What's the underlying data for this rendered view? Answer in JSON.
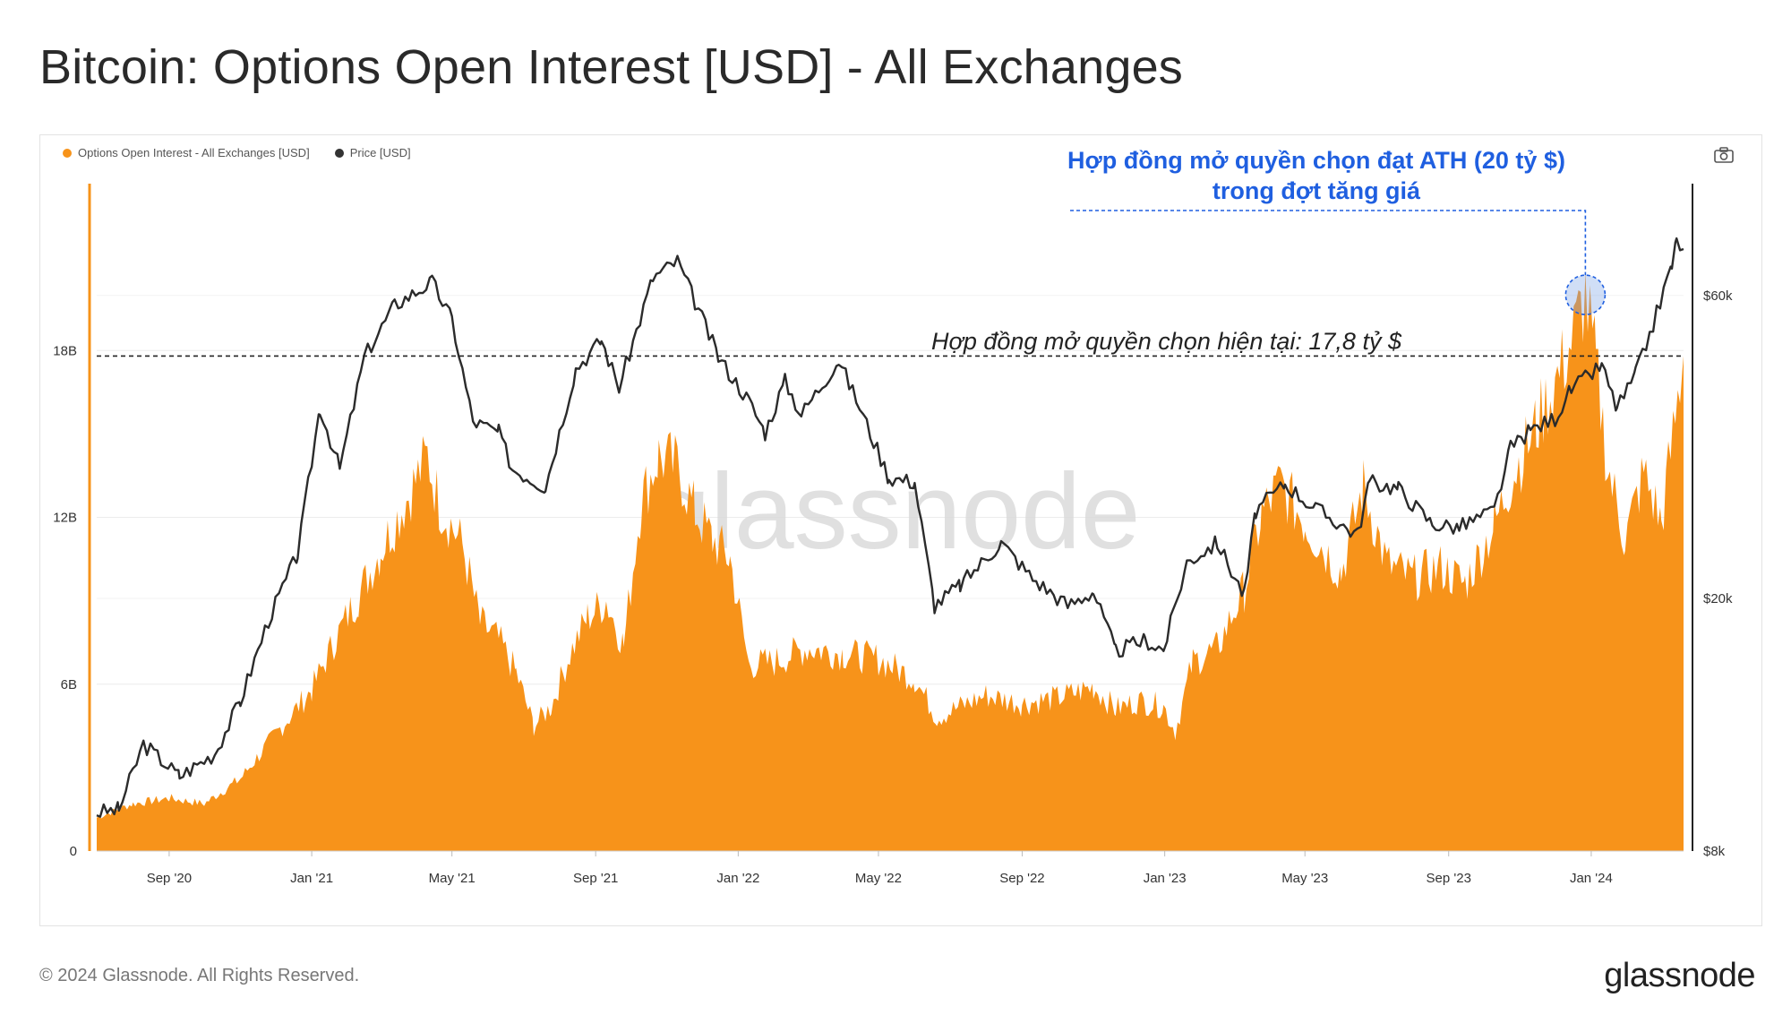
{
  "header": {
    "title": "Bitcoin: Options Open Interest [USD] - All Exchanges"
  },
  "footer": {
    "copyright": "© 2024 Glassnode. All Rights Reserved.",
    "logo_text": "glassnode"
  },
  "watermark": "glassnode",
  "legend": [
    {
      "label": "Options Open Interest - All Exchanges [USD]",
      "color": "#f7931a"
    },
    {
      "label": "Price [USD]",
      "color": "#333333"
    }
  ],
  "toolbar": {
    "camera_icon": "camera-icon"
  },
  "annotations": {
    "ath_line1": "Hợp đồng mở quyền chọn đạt ATH (20 tỷ $)",
    "ath_line2": "trong đợt tăng giá",
    "current": "Hợp đồng mở quyền chọn hiện tại: 17,8 tỷ $",
    "current_level_usd": 17800000000
  },
  "colors": {
    "oi": "#f7931a",
    "price": "#2b2b2b",
    "annotation_blue": "#1f5fe0",
    "grid": "#ececec"
  },
  "chart_data": {
    "type": "area",
    "title": "Bitcoin: Options Open Interest [USD] - All Exchanges",
    "x_tick_labels": [
      "Sep '20",
      "Jan '21",
      "May '21",
      "Sep '21",
      "Jan '22",
      "May '22",
      "Sep '22",
      "Jan '23",
      "May '23",
      "Sep '23",
      "Jan '24"
    ],
    "y_left": {
      "ticks": [
        "0",
        "6B",
        "12B",
        "18B"
      ],
      "tick_values": [
        0,
        6000000000,
        12000000000,
        18000000000
      ],
      "ylim": [
        0,
        24000000000
      ]
    },
    "y_right": {
      "ticks": [
        "$8k",
        "$20k",
        "$60k"
      ],
      "tick_values": [
        8000,
        20000,
        60000
      ],
      "scale": "log",
      "ylim": [
        8000,
        90000
      ]
    },
    "x_range": [
      "2020-07-01",
      "2024-03-20"
    ],
    "series": [
      {
        "name": "Options Open Interest - All Exchanges [USD]",
        "axis": "left",
        "style": "area",
        "x": [
          "2020-07-01",
          "2020-08-01",
          "2020-09-01",
          "2020-10-01",
          "2020-11-01",
          "2020-12-01",
          "2021-01-01",
          "2021-01-20",
          "2021-02-10",
          "2021-03-01",
          "2021-03-25",
          "2021-04-10",
          "2021-04-20",
          "2021-05-10",
          "2021-05-25",
          "2021-06-10",
          "2021-06-25",
          "2021-07-10",
          "2021-07-25",
          "2021-08-10",
          "2021-08-25",
          "2021-09-10",
          "2021-09-25",
          "2021-10-10",
          "2021-10-25",
          "2021-11-10",
          "2021-11-25",
          "2021-12-10",
          "2021-12-25",
          "2022-01-10",
          "2022-02-01",
          "2022-03-01",
          "2022-04-01",
          "2022-05-01",
          "2022-06-01",
          "2022-06-20",
          "2022-07-10",
          "2022-08-01",
          "2022-09-01",
          "2022-10-01",
          "2022-11-01",
          "2022-11-20",
          "2022-12-10",
          "2022-12-31",
          "2023-01-10",
          "2023-01-25",
          "2023-02-15",
          "2023-03-10",
          "2023-03-25",
          "2023-04-10",
          "2023-05-01",
          "2023-06-01",
          "2023-06-20",
          "2023-07-10",
          "2023-08-01",
          "2023-08-25",
          "2023-09-15",
          "2023-10-10",
          "2023-10-25",
          "2023-11-15",
          "2023-12-01",
          "2023-12-15",
          "2023-12-27",
          "2024-01-05",
          "2024-01-15",
          "2024-01-30",
          "2024-02-15",
          "2024-03-01",
          "2024-03-20"
        ],
        "values": [
          1200000000,
          1700000000,
          1900000000,
          1700000000,
          2600000000,
          4200000000,
          5800000000,
          7500000000,
          9200000000,
          10800000000,
          12800000000,
          14200000000,
          12500000000,
          11000000000,
          8200000000,
          7600000000,
          6400000000,
          4500000000,
          5200000000,
          7100000000,
          8400000000,
          9000000000,
          7400000000,
          12600000000,
          14200000000,
          13800000000,
          12200000000,
          11200000000,
          10500000000,
          6700000000,
          6800000000,
          7300000000,
          7100000000,
          6900000000,
          6200000000,
          4800000000,
          5200000000,
          5600000000,
          5300000000,
          5500000000,
          5900000000,
          5100000000,
          5400000000,
          5200000000,
          4300000000,
          6800000000,
          7300000000,
          9400000000,
          12100000000,
          13200000000,
          11800000000,
          10000000000,
          13100000000,
          10300000000,
          9800000000,
          10200000000,
          9600000000,
          11700000000,
          13400000000,
          15300000000,
          16800000000,
          18300000000,
          20000000000,
          17500000000,
          13800000000,
          11200000000,
          13600000000,
          11800000000,
          17800000000
        ]
      },
      {
        "name": "Price [USD]",
        "axis": "right",
        "style": "line",
        "x": [
          "2020-07-01",
          "2020-07-20",
          "2020-08-10",
          "2020-09-10",
          "2020-10-10",
          "2020-11-01",
          "2020-11-25",
          "2020-12-20",
          "2021-01-08",
          "2021-01-25",
          "2021-02-15",
          "2021-03-13",
          "2021-04-14",
          "2021-05-01",
          "2021-05-19",
          "2021-06-10",
          "2021-06-22",
          "2021-07-20",
          "2021-08-15",
          "2021-09-06",
          "2021-09-21",
          "2021-10-20",
          "2021-11-10",
          "2021-11-28",
          "2021-12-15",
          "2022-01-10",
          "2022-01-24",
          "2022-02-10",
          "2022-02-24",
          "2022-03-28",
          "2022-04-15",
          "2022-05-10",
          "2022-06-01",
          "2022-06-18",
          "2022-07-10",
          "2022-08-14",
          "2022-09-10",
          "2022-10-10",
          "2022-11-01",
          "2022-11-20",
          "2022-12-15",
          "2022-12-31",
          "2023-01-20",
          "2023-02-15",
          "2023-03-10",
          "2023-03-20",
          "2023-04-14",
          "2023-05-10",
          "2023-06-15",
          "2023-06-25",
          "2023-07-20",
          "2023-08-18",
          "2023-09-10",
          "2023-10-10",
          "2023-10-24",
          "2023-11-10",
          "2023-12-01",
          "2023-12-15",
          "2024-01-10",
          "2024-01-23",
          "2024-02-08",
          "2024-02-20",
          "2024-03-10",
          "2024-03-14",
          "2024-03-20"
        ],
        "values": [
          9200,
          9300,
          11800,
          10500,
          11400,
          13800,
          18500,
          23500,
          40000,
          32000,
          48000,
          58000,
          63000,
          55000,
          38000,
          36500,
          32000,
          30000,
          46000,
          51000,
          43000,
          64000,
          68000,
          57000,
          48000,
          41000,
          36500,
          44000,
          39000,
          47500,
          40000,
          31000,
          30500,
          19500,
          21000,
          24500,
          21500,
          19500,
          20500,
          16500,
          17200,
          16600,
          22800,
          24500,
          20200,
          27500,
          30300,
          27700,
          25200,
          30500,
          29800,
          26200,
          25900,
          27500,
          34500,
          36800,
          38500,
          42700,
          46500,
          39800,
          45000,
          52000,
          67000,
          73000,
          71000
        ]
      }
    ],
    "grid": true,
    "legend_position": "top-left"
  }
}
